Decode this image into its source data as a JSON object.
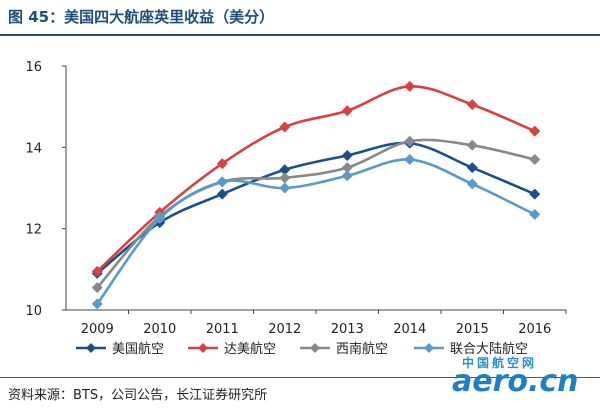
{
  "header": {
    "title": "图 45：美国四大航座英里收益（美分）"
  },
  "footer": {
    "source": "资料来源：BTS，公司公告，长江证券研究所"
  },
  "watermark": {
    "cn": "中国航空网",
    "en": "aero.cn"
  },
  "chart_data": {
    "type": "line",
    "title": "图 45：美国四大航座英里收益（美分）",
    "xlabel": "",
    "ylabel": "",
    "x": [
      "2009",
      "2010",
      "2011",
      "2012",
      "2013",
      "2014",
      "2015",
      "2016"
    ],
    "ylim": [
      10,
      16
    ],
    "yticks": [
      10,
      12,
      14,
      16
    ],
    "grid": false,
    "legend_position": "bottom",
    "series": [
      {
        "name": "美国航空",
        "color": "#1a4f8a",
        "marker": "diamond",
        "values": [
          10.9,
          12.15,
          12.85,
          13.45,
          13.8,
          14.1,
          13.5,
          12.85
        ]
      },
      {
        "name": "达美航空",
        "color": "#d94040",
        "marker": "diamond",
        "values": [
          10.95,
          12.4,
          13.6,
          14.5,
          14.9,
          15.5,
          15.05,
          14.4
        ]
      },
      {
        "name": "西南航空",
        "color": "#888888",
        "marker": "diamond",
        "values": [
          10.55,
          12.3,
          13.15,
          13.25,
          13.5,
          14.15,
          14.05,
          13.7
        ]
      },
      {
        "name": "联合大陆航空",
        "color": "#5a9ac8",
        "marker": "diamond",
        "values": [
          10.15,
          12.25,
          13.15,
          13.0,
          13.3,
          13.7,
          13.1,
          12.35
        ]
      }
    ]
  }
}
